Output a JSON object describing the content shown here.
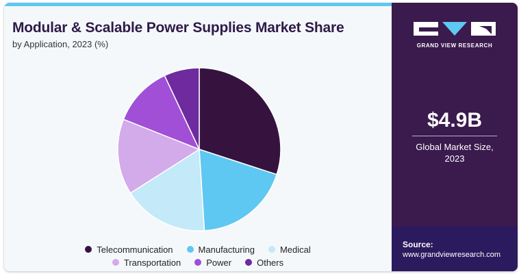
{
  "header": {
    "title": "Modular & Scalable Power Supplies Market Share",
    "subtitle": "by Application, 2023 (%)"
  },
  "chart_data": {
    "type": "pie",
    "title": "Modular & Scalable Power Supplies Market Share",
    "subtitle": "by Application, 2023 (%)",
    "categories": [
      "Telecommunication",
      "Manufacturing",
      "Medical",
      "Transportation",
      "Power",
      "Others"
    ],
    "values": [
      30,
      19,
      17,
      15,
      12,
      7
    ],
    "colors": [
      "#36133f",
      "#5ec8f2",
      "#c4e9f8",
      "#d3aaea",
      "#a04fd6",
      "#6e2a9e"
    ],
    "start_angle_deg": 0,
    "direction": "clockwise",
    "legend_position": "bottom"
  },
  "legend": {
    "rows": [
      [
        {
          "label": "Telecommunication",
          "color": "#36133f"
        },
        {
          "label": "Manufacturing",
          "color": "#5ec8f2"
        },
        {
          "label": "Medical",
          "color": "#c4e9f8"
        }
      ],
      [
        {
          "label": "Transportation",
          "color": "#d3aaea"
        },
        {
          "label": "Power",
          "color": "#a04fd6"
        },
        {
          "label": "Others",
          "color": "#6e2a9e"
        }
      ]
    ]
  },
  "sidebar": {
    "brand": "GRAND VIEW RESEARCH",
    "market_value": "$4.9B",
    "market_caption_line1": "Global Market Size,",
    "market_caption_line2": "2023",
    "source_label": "Source:",
    "source_url": "www.grandviewresearch.com"
  },
  "colors": {
    "sidebar_bg": "#3b1a4d",
    "source_bg": "#2c1a5e",
    "title": "#2e1a47",
    "accent": "#5ec8f2"
  }
}
